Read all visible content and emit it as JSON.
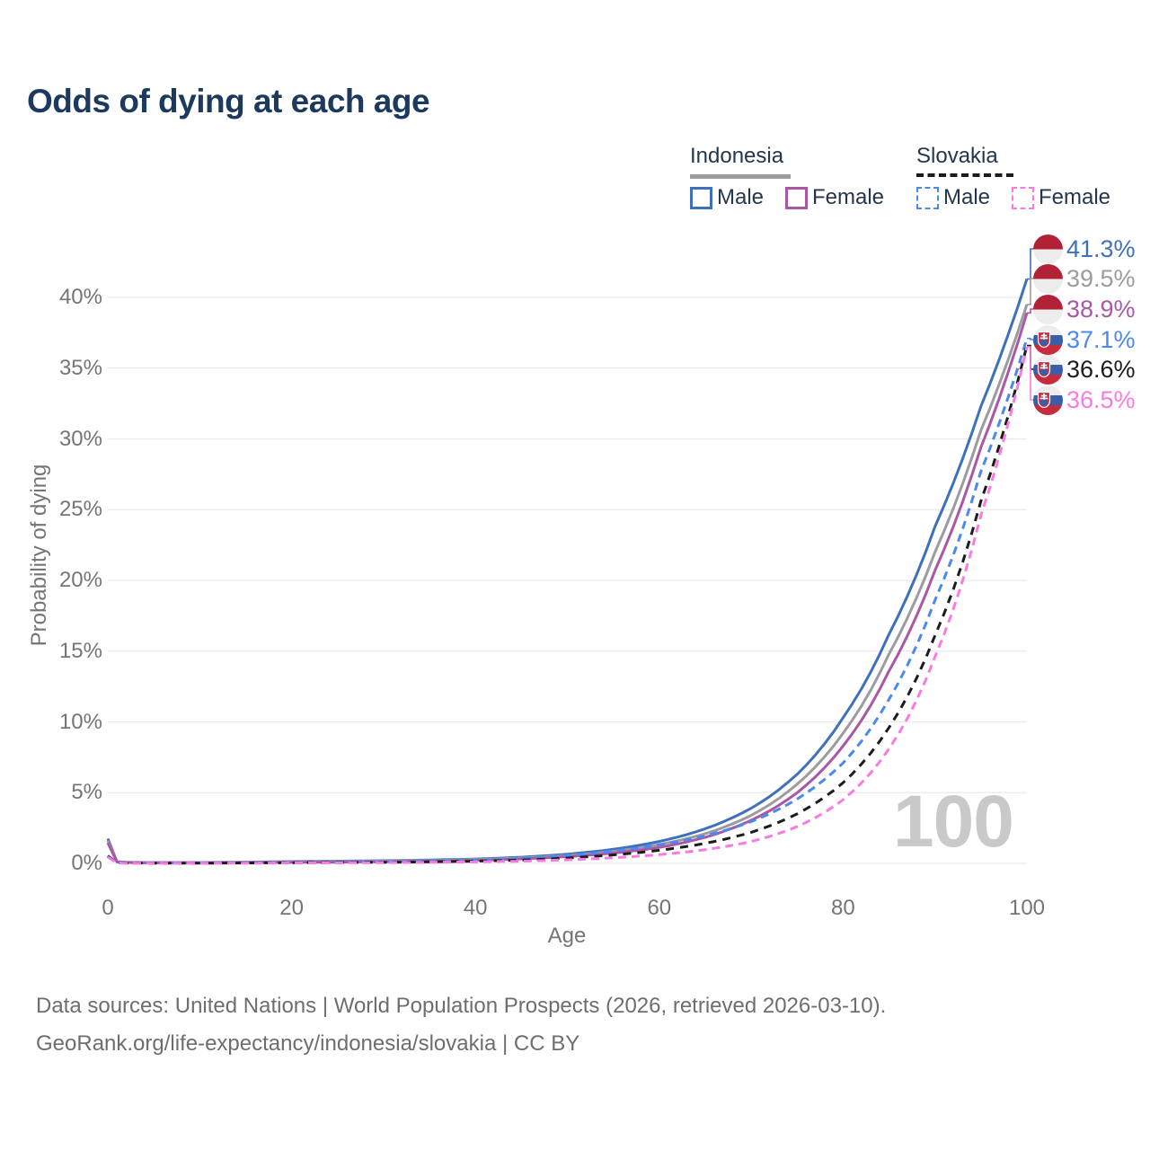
{
  "title": "Odds of dying at each age",
  "legend": {
    "groups": [
      {
        "label": "Indonesia",
        "line_style": "solid",
        "color": "#9c9ca0",
        "items": [
          {
            "label": "Male",
            "color": "#3e70bb",
            "dash": false
          },
          {
            "label": "Female",
            "color": "#aa57a5",
            "dash": false
          }
        ]
      },
      {
        "label": "Slovakia",
        "line_style": "dashed",
        "color": "#1c1c1c",
        "items": [
          {
            "label": "Male",
            "color": "#4b88f2",
            "dash": true
          },
          {
            "label": "Female",
            "color": "#fb7ae1",
            "dash": true
          }
        ]
      }
    ]
  },
  "chart_data": {
    "type": "line",
    "title": "Odds of dying at each age",
    "xlabel": "Age",
    "ylabel": "Probability of dying",
    "xlim": [
      0,
      100
    ],
    "ylim": [
      0,
      43
    ],
    "grid": "horizontal",
    "legend_position": "top-right",
    "unit": "percent",
    "x_ticks": [
      {
        "value": 0,
        "label": "0"
      },
      {
        "value": 20,
        "label": "20"
      },
      {
        "value": 40,
        "label": "40"
      },
      {
        "value": 60,
        "label": "60"
      },
      {
        "value": 80,
        "label": "80"
      },
      {
        "value": 100,
        "label": "100"
      }
    ],
    "y_ticks": [
      {
        "value": 0,
        "label": "0%"
      },
      {
        "value": 5,
        "label": "5%"
      },
      {
        "value": 10,
        "label": "10%"
      },
      {
        "value": 15,
        "label": "15%"
      },
      {
        "value": 20,
        "label": "20%"
      },
      {
        "value": 25,
        "label": "25%"
      },
      {
        "value": 30,
        "label": "30%"
      },
      {
        "value": 35,
        "label": "35%"
      },
      {
        "value": 40,
        "label": "40%"
      }
    ],
    "ages": [
      0,
      1,
      2,
      5,
      10,
      15,
      20,
      25,
      30,
      35,
      40,
      45,
      50,
      55,
      60,
      65,
      70,
      75,
      80,
      85,
      90,
      95,
      100
    ],
    "series": [
      {
        "name": "Indonesia Male",
        "country": "Indonesia",
        "sex": "Male",
        "style": "solid",
        "color": "#3e70bb",
        "dash": null,
        "values": [
          1.75,
          0.12,
          0.08,
          0.06,
          0.06,
          0.09,
          0.13,
          0.16,
          0.19,
          0.24,
          0.31,
          0.44,
          0.65,
          1.0,
          1.55,
          2.45,
          3.9,
          6.3,
          10.3,
          16.2,
          23.8,
          32.3,
          41.3
        ]
      },
      {
        "name": "Indonesia",
        "country": "Indonesia",
        "sex": "Both",
        "style": "solid",
        "color": "#9c9ca0",
        "dash": null,
        "values": [
          1.6,
          0.11,
          0.07,
          0.055,
          0.05,
          0.07,
          0.1,
          0.13,
          0.16,
          0.2,
          0.27,
          0.38,
          0.56,
          0.85,
          1.33,
          2.1,
          3.4,
          5.6,
          9.2,
          14.8,
          22.0,
          30.6,
          39.5
        ]
      },
      {
        "name": "Indonesia Female",
        "country": "Indonesia",
        "sex": "Female",
        "style": "solid",
        "color": "#aa57a5",
        "dash": null,
        "values": [
          1.45,
          0.1,
          0.06,
          0.05,
          0.045,
          0.055,
          0.07,
          0.09,
          0.12,
          0.16,
          0.22,
          0.32,
          0.48,
          0.73,
          1.13,
          1.85,
          3.05,
          5.0,
          8.3,
          13.6,
          20.7,
          29.4,
          38.9
        ]
      },
      {
        "name": "Slovakia Male",
        "country": "Slovakia",
        "sex": "Male",
        "style": "dashed",
        "color": "#4b88f2",
        "dash": [
          9,
          6
        ],
        "values": [
          0.55,
          0.04,
          0.03,
          0.02,
          0.02,
          0.04,
          0.07,
          0.09,
          0.11,
          0.15,
          0.22,
          0.34,
          0.55,
          0.88,
          1.32,
          1.95,
          2.95,
          4.55,
          7.1,
          11.6,
          18.6,
          27.7,
          37.1
        ]
      },
      {
        "name": "Slovakia",
        "country": "Slovakia",
        "sex": "Both",
        "style": "dashed",
        "color": "#1c1c1c",
        "dash": [
          9,
          7
        ],
        "values": [
          0.5,
          0.035,
          0.025,
          0.018,
          0.018,
          0.03,
          0.05,
          0.065,
          0.08,
          0.11,
          0.16,
          0.24,
          0.38,
          0.6,
          0.93,
          1.42,
          2.2,
          3.5,
          5.7,
          9.6,
          16.1,
          25.6,
          36.6
        ]
      },
      {
        "name": "Slovakia Female",
        "country": "Slovakia",
        "sex": "Female",
        "style": "dashed",
        "color": "#fb7ae1",
        "dash": [
          9,
          6
        ],
        "values": [
          0.45,
          0.03,
          0.02,
          0.015,
          0.015,
          0.02,
          0.03,
          0.04,
          0.055,
          0.075,
          0.11,
          0.16,
          0.25,
          0.4,
          0.62,
          0.97,
          1.55,
          2.6,
          4.5,
          8.1,
          14.6,
          24.6,
          36.5
        ]
      }
    ],
    "end_value_labels": [
      "41.3%",
      "39.5%",
      "38.9%",
      "37.1%",
      "36.6%",
      "36.5%"
    ]
  },
  "end_labels": [
    {
      "value": "41.3%",
      "series": "Indonesia Male",
      "flag": "indonesia-flag",
      "color": "#3e70bb"
    },
    {
      "value": "39.5%",
      "series": "Indonesia",
      "flag": "indonesia-flag",
      "color": "#9c9ca0"
    },
    {
      "value": "38.9%",
      "series": "Indonesia Female",
      "flag": "indonesia-flag",
      "color": "#aa57a5"
    },
    {
      "value": "37.1%",
      "series": "Slovakia Male",
      "flag": "slovakia-flag",
      "color": "#4b88f2"
    },
    {
      "value": "36.6%",
      "series": "Slovakia",
      "flag": "slovakia-flag",
      "color": "#1c1c1c"
    },
    {
      "value": "36.5%",
      "series": "Slovakia Female",
      "flag": "slovakia-flag",
      "color": "#fb7ae1"
    }
  ],
  "watermark": "100",
  "footer": {
    "line1": "Data sources: United Nations | World Population Prospects (2026, retrieved 2026-03-10).",
    "line2": "GeoRank.org/life-expectancy/indonesia/slovakia | CC BY"
  },
  "colors": {
    "title_text": "#1c3a5e",
    "axis_text": "#757575",
    "gridline": "#eaeaea",
    "watermark": "#c9c9c9",
    "footer_text": "#6e6e6e",
    "legend_text": "#25364c"
  }
}
